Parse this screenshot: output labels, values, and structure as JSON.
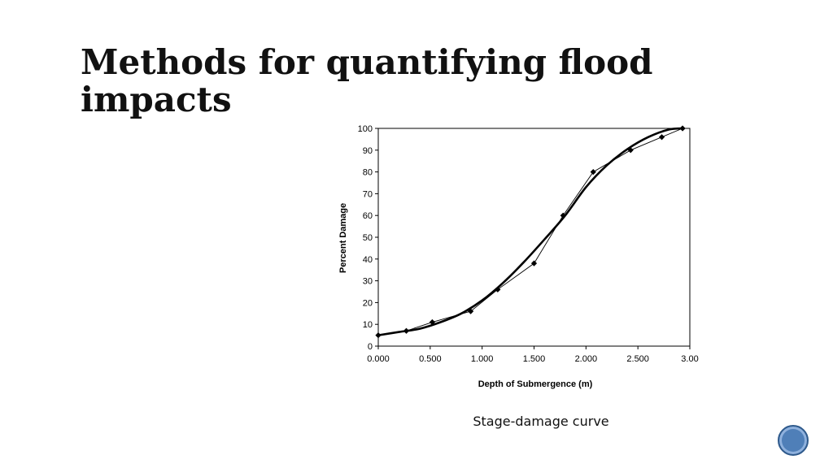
{
  "slide": {
    "title": "Methods for quantifying flood impacts",
    "caption": "Stage-damage curve"
  },
  "colors": {
    "badge": "#4f7fb8",
    "curve": "#000000"
  },
  "chart_data": {
    "type": "line",
    "title": "",
    "xlabel": "Depth of Submergence (m)",
    "ylabel": "Percent Damage",
    "xlim": [
      0,
      3.0
    ],
    "ylim": [
      0,
      100
    ],
    "xticks": [
      0,
      0.5,
      1.0,
      1.5,
      2.0,
      2.5,
      3.0
    ],
    "xtick_labels": [
      "0.000",
      "0.500",
      "1.000",
      "1.500",
      "2.000",
      "2.500",
      "3.00"
    ],
    "yticks": [
      0,
      10,
      20,
      30,
      40,
      50,
      60,
      70,
      80,
      90,
      100
    ],
    "ytick_labels": [
      "0",
      "10",
      "20",
      "30",
      "40",
      "50",
      "60",
      "70",
      "80",
      "90",
      "100"
    ],
    "grid": false,
    "legend": "none",
    "series": [
      {
        "marker": "diamond",
        "x": [
          0.0,
          0.27,
          0.52,
          0.89,
          1.15,
          1.5,
          1.78,
          2.07,
          2.43,
          2.73,
          2.93
        ],
        "y": [
          5,
          7,
          11,
          16,
          26,
          38,
          60,
          80,
          90,
          96,
          100
        ]
      },
      {
        "marker": "none",
        "x": [
          0.0,
          0.2,
          0.4,
          0.6,
          0.8,
          1.0,
          1.2,
          1.4,
          1.6,
          1.8,
          2.0,
          2.2,
          2.4,
          2.6,
          2.8,
          2.95
        ],
        "y": [
          5,
          6.5,
          8,
          11,
          15,
          21,
          29,
          38.5,
          49,
          60,
          73,
          83,
          90.5,
          96,
          99.5,
          100
        ]
      }
    ]
  }
}
